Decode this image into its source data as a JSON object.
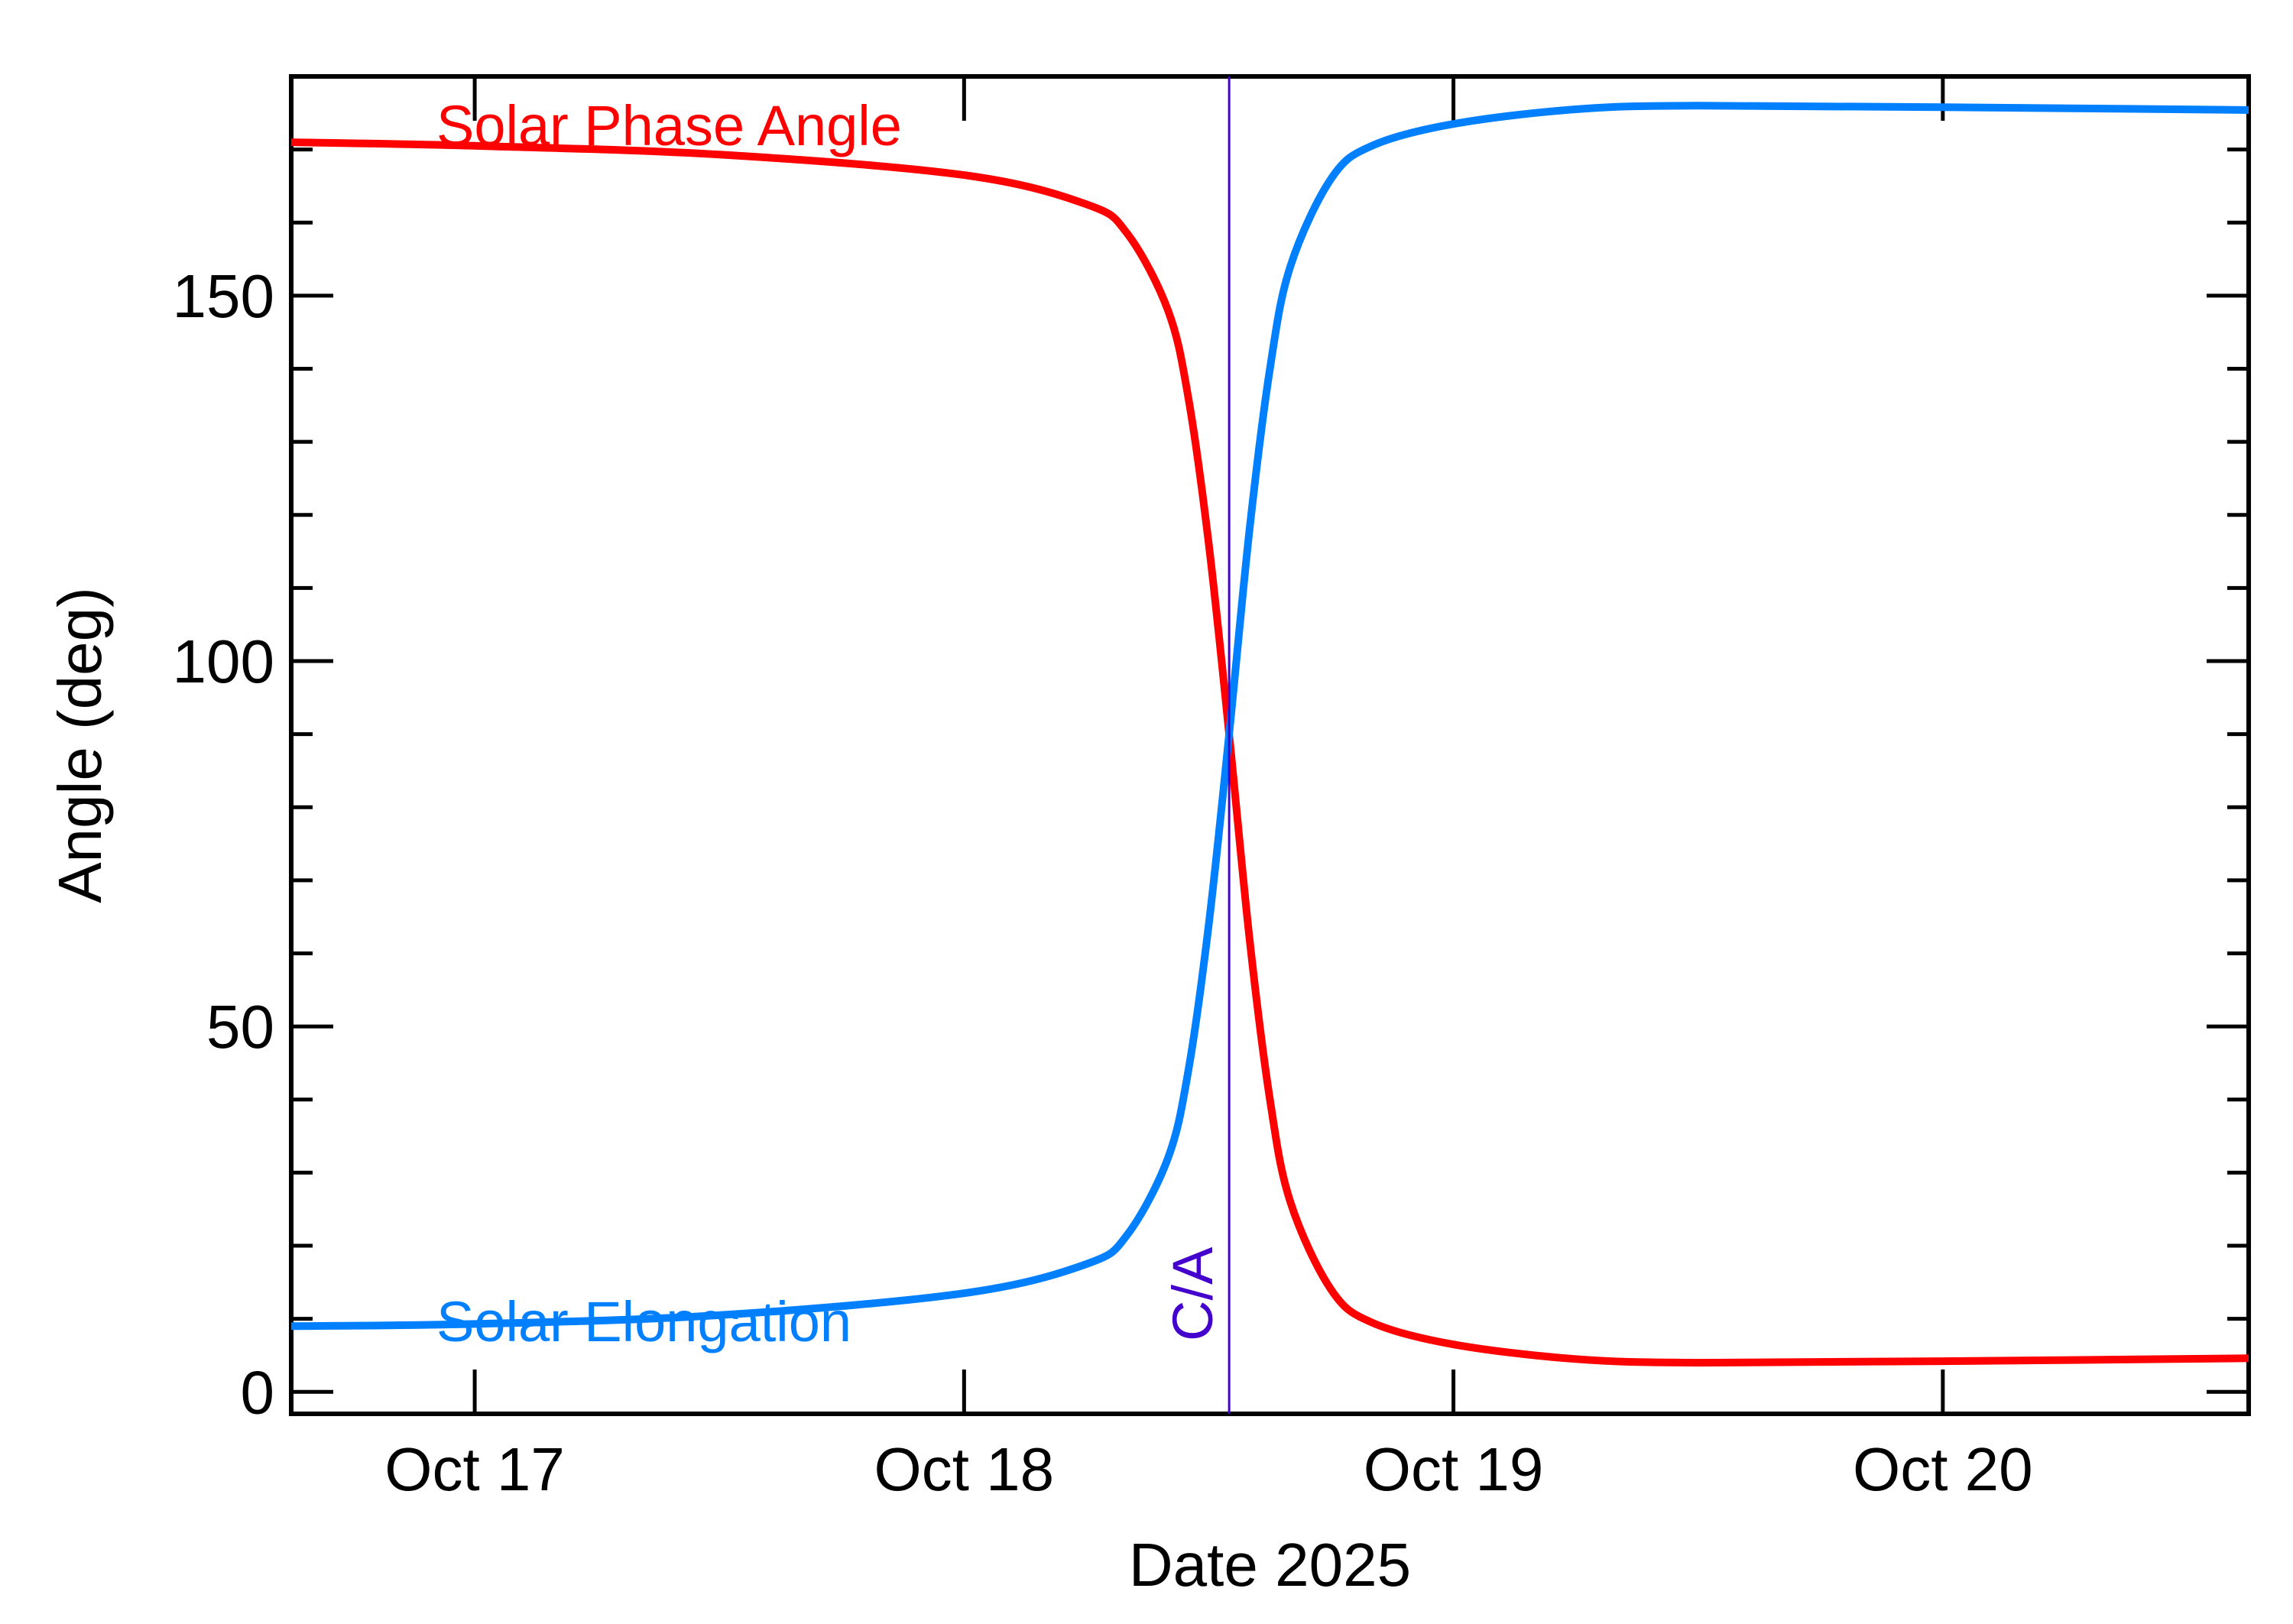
{
  "chart_data": {
    "type": "line",
    "title": "",
    "xlabel": "Date 2025",
    "ylabel": "Angle (deg)",
    "x_axis": {
      "range": [
        "2025-10-16T15:00",
        "2025-10-20T15:00"
      ],
      "ticks": [
        {
          "value": "2025-10-17T00:00",
          "label": "Oct 17"
        },
        {
          "value": "2025-10-18T00:00",
          "label": "Oct 18"
        },
        {
          "value": "2025-10-19T00:00",
          "label": "Oct 19"
        },
        {
          "value": "2025-10-20T00:00",
          "label": "Oct 20"
        }
      ],
      "minor_ticks_per_major": 0
    },
    "y_axis": {
      "range": [
        -3,
        180
      ],
      "ticks": [
        {
          "value": 0,
          "label": "0"
        },
        {
          "value": 50,
          "label": "50"
        },
        {
          "value": 100,
          "label": "100"
        },
        {
          "value": 150,
          "label": "150"
        }
      ],
      "minor_step": 10
    },
    "grid": false,
    "legend": "inline labels",
    "series": [
      {
        "name": "Solar Phase Angle",
        "color": "#ff0000",
        "label_position": "top-left",
        "points": [
          [
            "2025-10-16T15:00",
            171.0
          ],
          [
            "2025-10-17T00:00",
            170.5
          ],
          [
            "2025-10-17T12:00",
            169.3
          ],
          [
            "2025-10-18T00:00",
            166.5
          ],
          [
            "2025-10-18T06:00",
            162.5
          ],
          [
            "2025-10-18T08:00",
            158.5
          ],
          [
            "2025-10-18T10:00",
            148.0
          ],
          [
            "2025-10-18T11:00",
            136.0
          ],
          [
            "2025-10-18T12:00",
            116.0
          ],
          [
            "2025-10-18T13:00",
            90.0
          ],
          [
            "2025-10-18T14:00",
            62.0
          ],
          [
            "2025-10-18T15:00",
            40.0
          ],
          [
            "2025-10-18T16:00",
            26.0
          ],
          [
            "2025-10-18T18:00",
            14.0
          ],
          [
            "2025-10-18T20:00",
            9.5
          ],
          [
            "2025-10-19T00:00",
            6.5
          ],
          [
            "2025-10-19T06:00",
            4.5
          ],
          [
            "2025-10-19T12:00",
            4.0
          ],
          [
            "2025-10-20T00:00",
            4.2
          ],
          [
            "2025-10-20T15:00",
            4.6
          ]
        ]
      },
      {
        "name": "Solar Elongation",
        "color": "#0080ff",
        "label_position": "bottom-left",
        "points": [
          [
            "2025-10-16T15:00",
            9.0
          ],
          [
            "2025-10-17T00:00",
            9.3
          ],
          [
            "2025-10-17T12:00",
            10.5
          ],
          [
            "2025-10-18T00:00",
            13.5
          ],
          [
            "2025-10-18T06:00",
            17.5
          ],
          [
            "2025-10-18T08:00",
            21.5
          ],
          [
            "2025-10-18T10:00",
            32.0
          ],
          [
            "2025-10-18T11:00",
            44.0
          ],
          [
            "2025-10-18T12:00",
            64.0
          ],
          [
            "2025-10-18T13:00",
            90.0
          ],
          [
            "2025-10-18T14:00",
            118.0
          ],
          [
            "2025-10-18T15:00",
            140.0
          ],
          [
            "2025-10-18T16:00",
            154.0
          ],
          [
            "2025-10-18T18:00",
            166.0
          ],
          [
            "2025-10-18T20:00",
            170.5
          ],
          [
            "2025-10-19T00:00",
            173.5
          ],
          [
            "2025-10-19T06:00",
            175.5
          ],
          [
            "2025-10-19T12:00",
            176.0
          ],
          [
            "2025-10-20T00:00",
            175.8
          ],
          [
            "2025-10-20T15:00",
            175.4
          ]
        ]
      }
    ],
    "annotations": [
      {
        "type": "vline",
        "x": "2025-10-18T13:00",
        "label": "C/A",
        "color": "#4400cc"
      }
    ]
  }
}
